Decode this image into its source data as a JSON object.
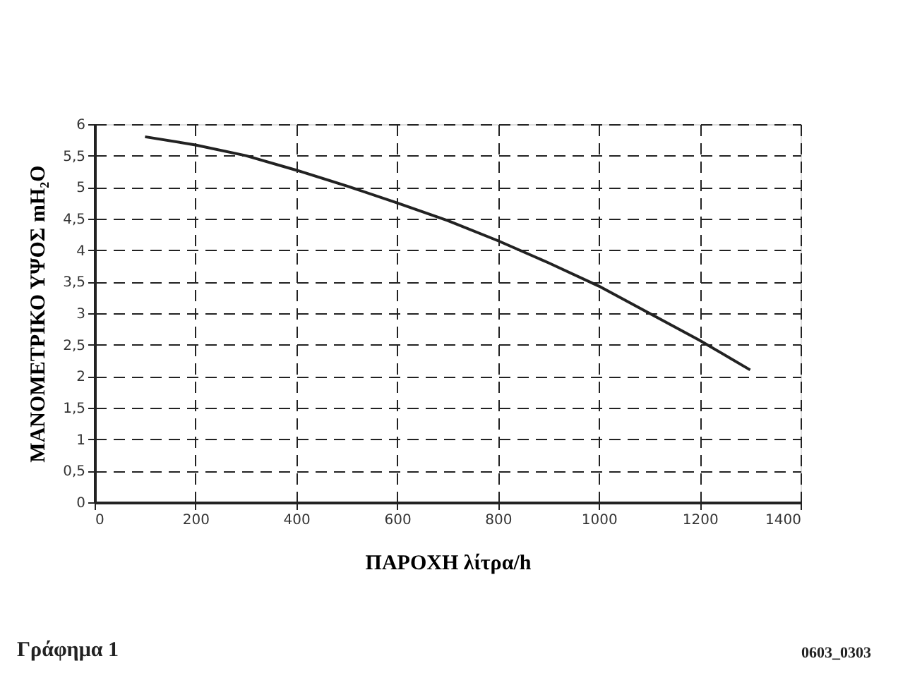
{
  "chart_data": {
    "type": "line",
    "xlabel": "ΠΑΡΟΧΗ λίτρα/h",
    "ylabel": "ΜΑΝΟΜΕΤΡΙΚΟ ΥΨΟΣ mH₂O",
    "annotations": [
      "Γράφημα 1",
      "0603_0303"
    ],
    "x": [
      100,
      200,
      300,
      400,
      500,
      600,
      700,
      800,
      900,
      1000,
      1100,
      1200,
      1300
    ],
    "series": [
      {
        "color": "#222222",
        "values": [
          5.8,
          5.67,
          5.5,
          5.27,
          5.02,
          4.75,
          4.47,
          4.15,
          3.8,
          3.43,
          3.0,
          2.57,
          2.1
        ]
      }
    ],
    "xlim": [
      0,
      1400
    ],
    "xticks": [
      0,
      200,
      400,
      600,
      800,
      1000,
      1200,
      1400
    ],
    "ylim": [
      0,
      6
    ],
    "yticks": [
      0,
      {
        "value": 0.5,
        "label": "0,5"
      },
      1,
      {
        "value": 1.5,
        "label": "1,5"
      },
      2,
      {
        "value": 2.5,
        "label": "2,5"
      },
      3,
      {
        "value": 3.5,
        "label": "3,5"
      },
      4,
      {
        "value": 4.5,
        "label": "4,5"
      },
      5,
      {
        "value": 5.5,
        "label": "5,5"
      },
      6
    ],
    "grid": true,
    "marker": "none",
    "line_style": "solid"
  }
}
